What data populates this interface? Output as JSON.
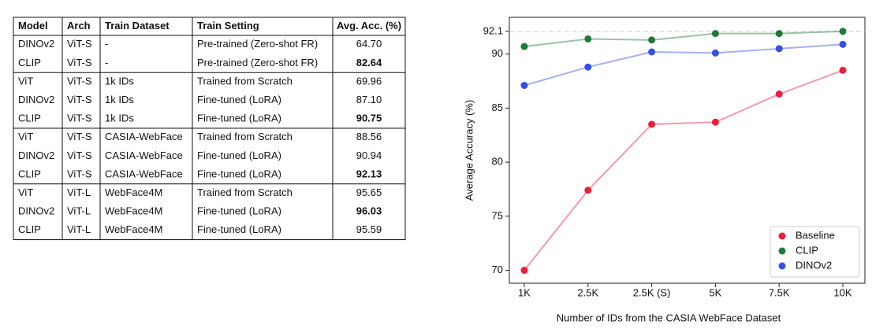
{
  "table": {
    "header": [
      "Model",
      "Arch",
      "Train Dataset",
      "Train Setting",
      "Avg. Acc. (%)"
    ],
    "groups": [
      [
        {
          "cells": [
            "DINOv2",
            "ViT-S",
            "-",
            "Pre-trained (Zero-shot FR)",
            "64.70"
          ],
          "best": false
        },
        {
          "cells": [
            "CLIP",
            "ViT-S",
            "-",
            "Pre-trained (Zero-shot FR)",
            "82.64"
          ],
          "best": true
        }
      ],
      [
        {
          "cells": [
            "ViT",
            "ViT-S",
            "1k IDs",
            "Trained from Scratch",
            "69.96"
          ],
          "best": false
        },
        {
          "cells": [
            "DINOv2",
            "ViT-S",
            "1k IDs",
            "Fine-tuned (LoRA)",
            "87.10"
          ],
          "best": false
        },
        {
          "cells": [
            "CLIP",
            "ViT-S",
            "1k IDs",
            "Fine-tuned (LoRA)",
            "90.75"
          ],
          "best": true
        }
      ],
      [
        {
          "cells": [
            "ViT",
            "ViT-S",
            "CASIA-WebFace",
            "Trained from Scratch",
            "88.56"
          ],
          "best": false
        },
        {
          "cells": [
            "DINOv2",
            "ViT-S",
            "CASIA-WebFace",
            "Fine-tuned (LoRA)",
            "90.94"
          ],
          "best": false
        },
        {
          "cells": [
            "CLIP",
            "ViT-S",
            "CASIA-WebFace",
            "Fine-tuned (LoRA)",
            "92.13"
          ],
          "best": true
        }
      ],
      [
        {
          "cells": [
            "ViT",
            "ViT-L",
            "WebFace4M",
            "Trained from Scratch",
            "95.65"
          ],
          "best": false
        },
        {
          "cells": [
            "DINOv2",
            "ViT-L",
            "WebFace4M",
            "Fine-tuned (LoRA)",
            "96.03"
          ],
          "best": true
        },
        {
          "cells": [
            "CLIP",
            "ViT-L",
            "WebFace4M",
            "Fine-tuned (LoRA)",
            "95.59"
          ],
          "best": false
        }
      ]
    ]
  },
  "chart_data": {
    "type": "line",
    "x_label": "Number of IDs from the CASIA WebFace Dataset",
    "y_label": "Average Accuracy (%)",
    "categories": [
      "1K",
      "2.5K",
      "2.5K (S)",
      "5K",
      "7.5K",
      "10K"
    ],
    "series": [
      {
        "name": "Baseline",
        "color": "#e8213a",
        "values": [
          70.0,
          77.4,
          83.5,
          83.7,
          86.3,
          88.5
        ]
      },
      {
        "name": "CLIP",
        "color": "#1f7a3a",
        "values": [
          90.7,
          91.4,
          91.3,
          91.9,
          91.9,
          92.1
        ]
      },
      {
        "name": "DINOv2",
        "color": "#3550e6",
        "values": [
          87.1,
          88.8,
          90.2,
          90.1,
          90.5,
          90.9
        ]
      }
    ],
    "ylim": [
      68.8,
      93.4
    ],
    "yticks": [
      70,
      75,
      80,
      85,
      90,
      92.1
    ],
    "reference_line": 92.1,
    "legend": "lower right"
  }
}
